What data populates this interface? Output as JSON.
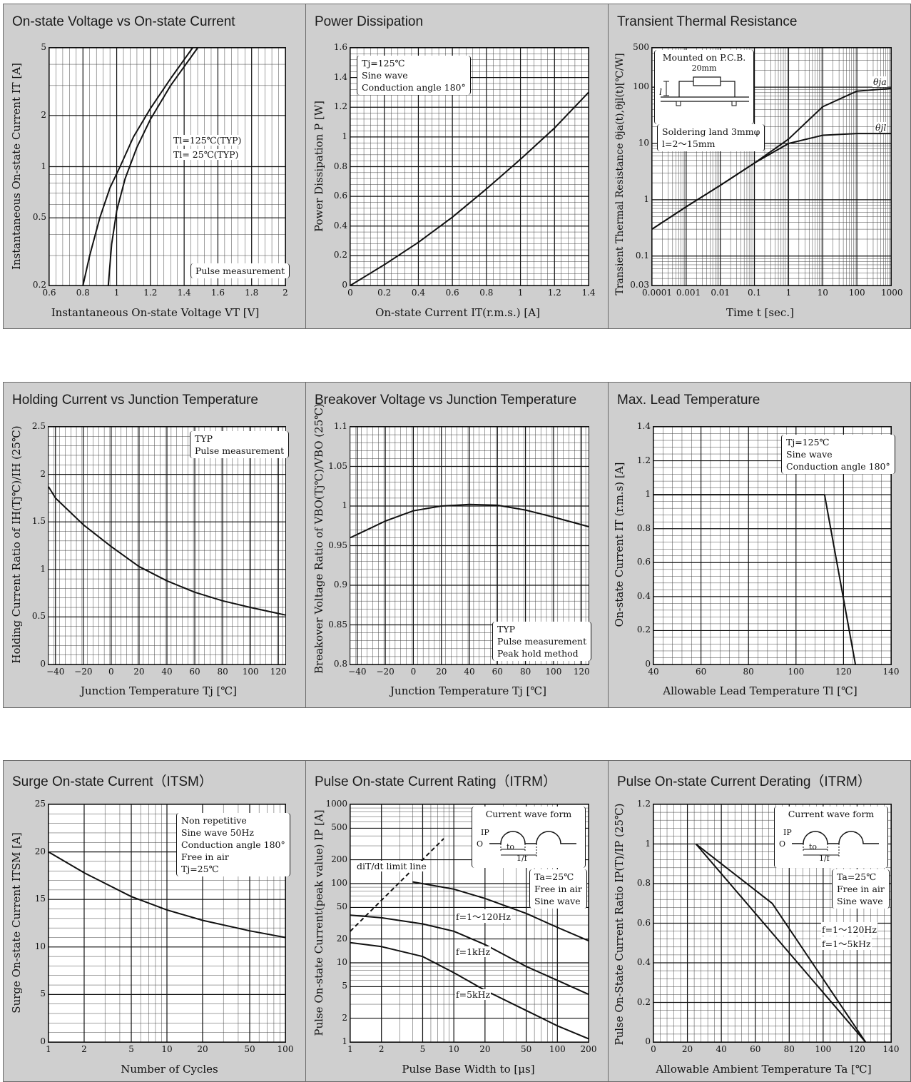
{
  "chart_data": [
    {
      "type": "line",
      "title": "On-state Voltage vs On-state Current",
      "xlabel": "Instantaneous On-state Voltage  VT [V]",
      "ylabel": "Instantaneous On-state Current  IT [A]",
      "xlim": [
        0.6,
        2
      ],
      "ylim": [
        0.2,
        5
      ],
      "yscale": "log",
      "xticks": [
        "0.6",
        "0.8",
        "1",
        "1.2",
        "1.4",
        "1.6",
        "1.8",
        "2"
      ],
      "yticks": [
        "0.2",
        "0.5",
        "1",
        "2",
        "5"
      ],
      "series": [
        {
          "name": "Tl=125℃(TYP)",
          "x": [
            0.8,
            0.84,
            0.9,
            0.96,
            1.02,
            1.1,
            1.2,
            1.32,
            1.45
          ],
          "y": [
            0.2,
            0.3,
            0.5,
            0.75,
            1.0,
            1.5,
            2.2,
            3.3,
            5.0
          ]
        },
        {
          "name": "Tl= 25℃(TYP)",
          "x": [
            0.95,
            0.97,
            1.0,
            1.05,
            1.12,
            1.2,
            1.32,
            1.48
          ],
          "y": [
            0.2,
            0.35,
            0.55,
            0.85,
            1.3,
            1.9,
            3.0,
            5.0
          ]
        }
      ],
      "annotations": [
        "Tl=125℃(TYP)",
        "Tl= 25℃(TYP)"
      ],
      "note": [
        "Pulse measurement"
      ]
    },
    {
      "type": "line",
      "title": "Power Dissipation",
      "xlabel": "On-state Current  IT(r.m.s.) [A]",
      "ylabel": "Power Dissipation  P [W]",
      "xlim": [
        0,
        1.4
      ],
      "ylim": [
        0,
        1.6
      ],
      "xticks": [
        "0",
        "0.2",
        "0.4",
        "0.6",
        "0.8",
        "1",
        "1.2",
        "1.4"
      ],
      "yticks": [
        "0",
        "0.2",
        "0.4",
        "0.6",
        "0.8",
        "1",
        "1.2",
        "1.4",
        "1.6"
      ],
      "series": [
        {
          "name": "",
          "x": [
            0,
            0.2,
            0.4,
            0.6,
            0.8,
            1.0,
            1.2,
            1.4
          ],
          "y": [
            0,
            0.14,
            0.29,
            0.46,
            0.65,
            0.85,
            1.06,
            1.3
          ]
        }
      ],
      "note": [
        "Tj=125℃",
        "Sine wave",
        "Conduction angle 180°"
      ]
    },
    {
      "type": "line",
      "title": "Transient Thermal Resistance",
      "xlabel": "Time  t [sec.]",
      "ylabel": "Transient Thermal Resistance  θja(t),θjl(t)[℃/W]",
      "xlim": [
        0.0001,
        1000
      ],
      "ylim": [
        0.03,
        500
      ],
      "xscale": "log",
      "yscale": "log",
      "xticks": [
        "0.0001",
        "0.001",
        "0.01",
        "0.1",
        "1",
        "10",
        "100",
        "1000"
      ],
      "yticks": [
        "0.03",
        "0.1",
        "1",
        "10",
        "100",
        "500"
      ],
      "series": [
        {
          "name": "θja",
          "x": [
            0.0001,
            0.001,
            0.01,
            0.1,
            1,
            10,
            100,
            1000
          ],
          "y": [
            0.3,
            0.75,
            1.8,
            4.5,
            12,
            45,
            85,
            95
          ]
        },
        {
          "name": "θjl",
          "x": [
            0.0001,
            0.001,
            0.01,
            0.1,
            1,
            10,
            100,
            1000
          ],
          "y": [
            0.3,
            0.75,
            1.8,
            4.5,
            10,
            14,
            15,
            15
          ]
        }
      ],
      "inset": [
        "Mounted on P.C.B.",
        "20mm",
        "l"
      ],
      "note": [
        "Soldering land 3mmφ",
        "l=2～15mm"
      ]
    },
    {
      "type": "line",
      "title": "Holding Current vs Junction Temperature",
      "xlabel": "Junction Temperature  Tj [℃]",
      "ylabel": "Holding Current Ratio of IH(Tj℃)/IH (25℃)",
      "xlim": [
        -45,
        125
      ],
      "ylim": [
        0,
        2.5
      ],
      "xticks": [
        "−40",
        "−20",
        "0",
        "20",
        "40",
        "60",
        "80",
        "100",
        "120"
      ],
      "yticks": [
        "0",
        "0.5",
        "1",
        "1.5",
        "2",
        "2.5"
      ],
      "series": [
        {
          "name": "",
          "x": [
            -45,
            -40,
            -20,
            0,
            20,
            40,
            60,
            80,
            100,
            125
          ],
          "y": [
            1.87,
            1.75,
            1.47,
            1.24,
            1.03,
            0.88,
            0.76,
            0.67,
            0.6,
            0.52
          ]
        }
      ],
      "note": [
        "TYP",
        "Pulse measurement"
      ]
    },
    {
      "type": "line",
      "title": "Breakover Voltage vs Junction Temperature",
      "xlabel": "Junction Temperature  Tj [℃]",
      "ylabel": "Breakover Voltage Ratio of VBO(Tj℃)/VBO (25℃)",
      "xlim": [
        -45,
        125
      ],
      "ylim": [
        0.8,
        1.1
      ],
      "xticks": [
        "−40",
        "−20",
        "0",
        "20",
        "40",
        "60",
        "80",
        "100",
        "120"
      ],
      "yticks": [
        "0.8",
        "0.85",
        "0.9",
        "0.95",
        "1",
        "1.05",
        "1.1"
      ],
      "series": [
        {
          "name": "",
          "x": [
            -45,
            -20,
            0,
            20,
            40,
            60,
            80,
            100,
            125
          ],
          "y": [
            0.96,
            0.981,
            0.994,
            1.0,
            1.002,
            1.001,
            0.995,
            0.986,
            0.974
          ]
        }
      ],
      "note": [
        "TYP",
        "Pulse measurement",
        "Peak hold method"
      ]
    },
    {
      "type": "line",
      "title": "Max. Lead Temperature",
      "xlabel": "Allowable Lead Temperature  Tl [℃]",
      "ylabel": "On-state Current  IT (r.m.s)  [A]",
      "xlim": [
        40,
        140
      ],
      "ylim": [
        0,
        1.4
      ],
      "xticks": [
        "40",
        "60",
        "80",
        "100",
        "120",
        "140"
      ],
      "yticks": [
        "0",
        "0.2",
        "0.4",
        "0.6",
        "0.8",
        "1",
        "1.2",
        "1.4"
      ],
      "series": [
        {
          "name": "",
          "x": [
            40,
            112,
            125
          ],
          "y": [
            1.0,
            1.0,
            0
          ]
        }
      ],
      "note": [
        "Tj=125℃",
        "Sine wave",
        "Conduction angle 180°"
      ]
    },
    {
      "type": "line",
      "title": "Surge On-state Current（ITSM）",
      "xlabel": "Number of Cycles",
      "ylabel": "Surge On-state Current  ITSM [A]",
      "xlim": [
        1,
        100
      ],
      "ylim": [
        0,
        25
      ],
      "xscale": "log",
      "xticks": [
        "1",
        "2",
        "5",
        "10",
        "20",
        "50",
        "100"
      ],
      "yticks": [
        "0",
        "5",
        "10",
        "15",
        "20",
        "25"
      ],
      "series": [
        {
          "name": "",
          "x": [
            1,
            2,
            5,
            10,
            20,
            50,
            100
          ],
          "y": [
            20,
            17.8,
            15.3,
            13.9,
            12.8,
            11.7,
            11.0
          ]
        }
      ],
      "note": [
        "Non repetitive",
        "Sine wave 50Hz",
        "Conduction angle 180°",
        "Free in air",
        "Tj=25℃"
      ]
    },
    {
      "type": "line",
      "title": "Pulse On-state Current Rating（ITRM）",
      "xlabel": "Pulse Base Width  to [μs]",
      "ylabel": "Pulse On-state Current(peak value) IP [A]",
      "xlim": [
        1,
        200
      ],
      "ylim": [
        1,
        1000
      ],
      "xscale": "log",
      "yscale": "log",
      "xticks": [
        "1",
        "2",
        "5",
        "10",
        "20",
        "50",
        "100",
        "200"
      ],
      "yticks": [
        "1",
        "2",
        "5",
        "10",
        "20",
        "50",
        "100",
        "200",
        "500",
        "1000"
      ],
      "series": [
        {
          "name": "diT/dt limit line",
          "x": [
            1,
            8
          ],
          "y": [
            25,
            370
          ]
        },
        {
          "name": "f=1～120Hz",
          "x": [
            4,
            10,
            20,
            50,
            100,
            200
          ],
          "y": [
            105,
            85,
            65,
            42,
            28,
            19
          ]
        },
        {
          "name": "f=1kHz",
          "x": [
            1,
            2,
            5,
            10,
            20,
            50,
            100,
            200
          ],
          "y": [
            40,
            37,
            31,
            25,
            17,
            9,
            6,
            4
          ]
        },
        {
          "name": "f=5kHz",
          "x": [
            1,
            2,
            5,
            10,
            20,
            50,
            100,
            200
          ],
          "y": [
            18,
            16,
            12,
            7.5,
            4.5,
            2.5,
            1.6,
            1.1
          ]
        }
      ],
      "annotations": [
        "diT/dt limit line",
        "f=1～120Hz",
        "f=1kHz",
        "f=5kHz"
      ],
      "inset": [
        "Current wave form",
        "IP",
        "O",
        "to",
        "1/f"
      ],
      "note": [
        "Ta=25℃",
        "Free in air",
        "Sine wave"
      ]
    },
    {
      "type": "line",
      "title": "Pulse On-state Current Derating（ITRM）",
      "xlabel": "Allowable Ambient Temperature  Ta [℃]",
      "ylabel": "Pulse On-State Current Ratio IP(T)/IP (25℃)",
      "xlim": [
        0,
        140
      ],
      "ylim": [
        0,
        1.2
      ],
      "xticks": [
        "0",
        "20",
        "40",
        "60",
        "80",
        "100",
        "120",
        "140"
      ],
      "yticks": [
        "0",
        "0.2",
        "0.4",
        "0.6",
        "0.8",
        "1",
        "1.2"
      ],
      "series": [
        {
          "name": "f=1～120Hz",
          "x": [
            25,
            70,
            125
          ],
          "y": [
            1.0,
            0.7,
            0
          ]
        },
        {
          "name": "f=1～5kHz",
          "x": [
            25,
            125
          ],
          "y": [
            1.0,
            0
          ]
        }
      ],
      "annotations": [
        "f=1～120Hz",
        "f=1～5kHz"
      ],
      "inset": [
        "Current wave form",
        "IP",
        "O",
        "to",
        "1/f"
      ],
      "note": [
        "Ta=25℃",
        "Free in air",
        "Sine wave"
      ]
    }
  ]
}
